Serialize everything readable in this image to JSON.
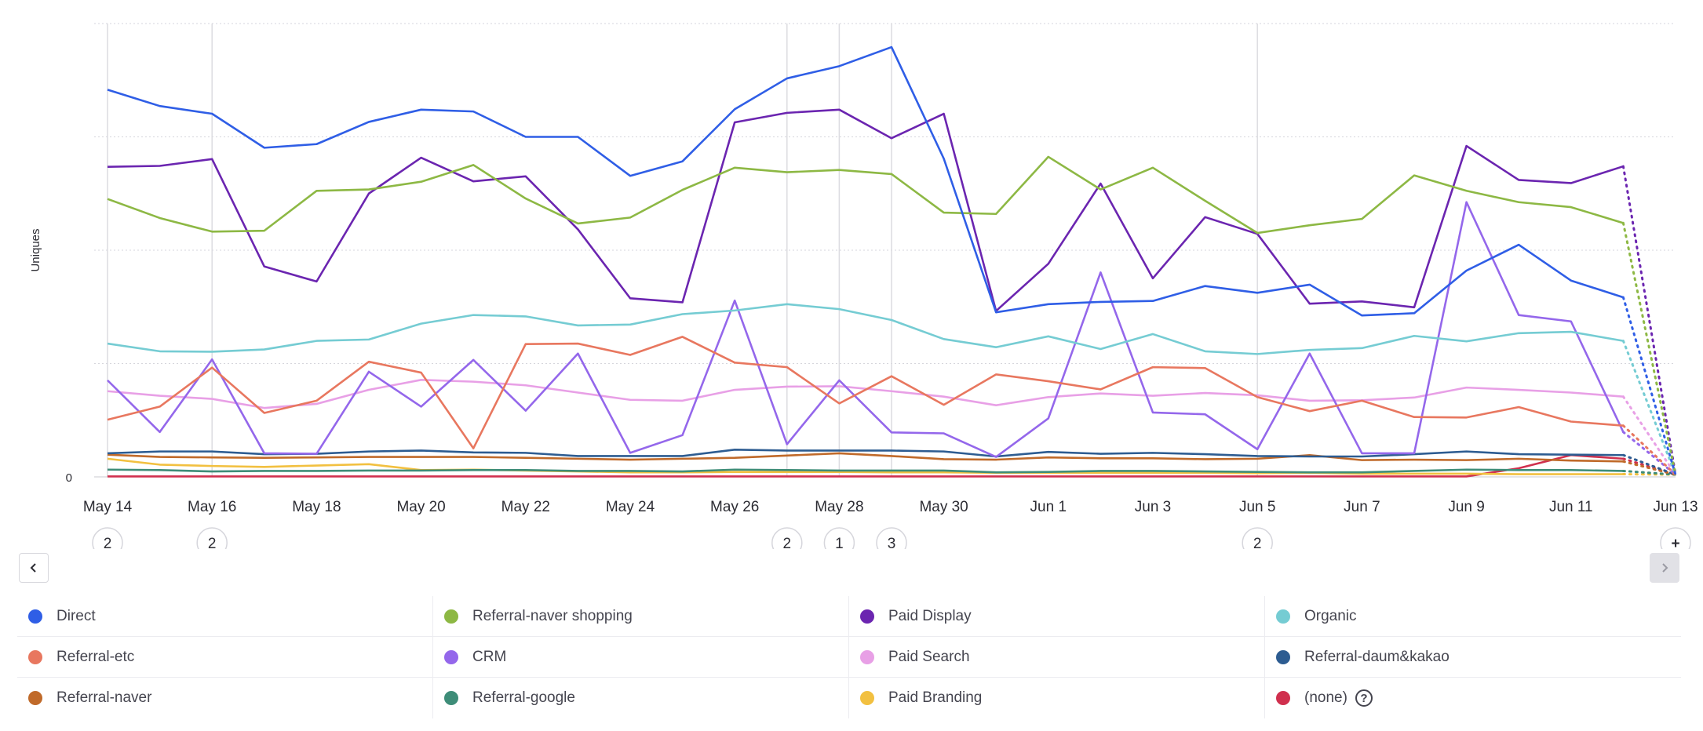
{
  "chart_data": {
    "type": "line",
    "ylabel": "Uniques",
    "yticks": [
      "0"
    ],
    "ylim": [
      0,
      100
    ],
    "grid": true,
    "legend_position": "bottom",
    "x": [
      "May 14",
      "May 15",
      "May 16",
      "May 17",
      "May 18",
      "May 19",
      "May 20",
      "May 21",
      "May 22",
      "May 23",
      "May 24",
      "May 25",
      "May 26",
      "May 27",
      "May 28",
      "May 29",
      "May 30",
      "May 31",
      "Jun 1",
      "Jun 2",
      "Jun 3",
      "Jun 4",
      "Jun 5",
      "Jun 6",
      "Jun 7",
      "Jun 8",
      "Jun 9",
      "Jun 10",
      "Jun 11",
      "Jun 12",
      "Jun 13"
    ],
    "xticks": [
      "May 14",
      "May 16",
      "May 18",
      "May 20",
      "May 22",
      "May 24",
      "May 26",
      "May 28",
      "May 30",
      "Jun 1",
      "Jun 3",
      "Jun 5",
      "Jun 7",
      "Jun 9",
      "Jun 11",
      "Jun 13"
    ],
    "incomplete_from_index": 29,
    "series": [
      {
        "name": "Direct",
        "color": "#2f5ee6",
        "values": [
          85.4,
          81.8,
          80.1,
          72.6,
          73.4,
          78.3,
          81.0,
          80.6,
          75.0,
          75.0,
          66.4,
          69.6,
          81.1,
          87.9,
          90.6,
          94.8,
          70.2,
          36.3,
          38.1,
          38.6,
          38.8,
          42.1,
          40.6,
          42.4,
          35.6,
          36.1,
          45.5,
          51.2,
          43.3,
          39.6,
          0.5
        ]
      },
      {
        "name": "Referral-naver shopping",
        "color": "#8db844",
        "values": [
          61.3,
          57.1,
          54.1,
          54.3,
          63.1,
          63.4,
          65.1,
          68.8,
          61.4,
          55.9,
          57.2,
          63.3,
          68.2,
          67.2,
          67.7,
          66.8,
          58.3,
          58.0,
          70.6,
          63.4,
          68.2,
          60.9,
          53.8,
          55.5,
          56.9,
          66.5,
          63.1,
          60.6,
          59.5,
          56.0,
          0.5
        ]
      },
      {
        "name": "Paid Display",
        "color": "#6b25b0",
        "values": [
          68.4,
          68.6,
          70.1,
          46.4,
          43.1,
          62.5,
          70.4,
          65.2,
          66.3,
          54.6,
          39.4,
          38.5,
          78.2,
          80.3,
          81.0,
          74.7,
          80.1,
          36.6,
          47.0,
          64.7,
          43.8,
          57.3,
          53.6,
          38.2,
          38.7,
          37.4,
          73.0,
          65.5,
          64.8,
          68.5,
          0.5
        ]
      },
      {
        "name": "Organic",
        "color": "#75ccd3",
        "values": [
          29.4,
          27.7,
          27.6,
          28.1,
          30.0,
          30.3,
          33.8,
          35.7,
          35.4,
          33.4,
          33.6,
          35.9,
          36.7,
          38.1,
          37.0,
          34.6,
          30.4,
          28.6,
          31.0,
          28.2,
          31.5,
          27.7,
          27.1,
          28.0,
          28.4,
          31.1,
          29.9,
          31.7,
          32.0,
          30.0,
          0.5
        ]
      },
      {
        "name": "Referral-etc",
        "color": "#e8775f",
        "values": [
          12.6,
          15.5,
          24.1,
          14.1,
          16.8,
          25.4,
          23.0,
          6.3,
          29.3,
          29.4,
          26.9,
          30.9,
          25.2,
          24.2,
          16.2,
          22.2,
          15.9,
          22.6,
          21.1,
          19.3,
          24.2,
          24.0,
          17.6,
          14.5,
          16.8,
          13.2,
          13.1,
          15.4,
          12.2,
          11.3,
          0.5
        ]
      },
      {
        "name": "CRM",
        "color": "#9467eb",
        "values": [
          21.3,
          9.9,
          25.9,
          5.2,
          5.1,
          23.2,
          15.5,
          25.8,
          14.6,
          27.2,
          5.3,
          9.2,
          38.9,
          7.2,
          21.3,
          9.8,
          9.6,
          4.4,
          12.9,
          45.1,
          14.2,
          13.8,
          6.1,
          27.2,
          5.2,
          5.2,
          60.6,
          35.7,
          34.3,
          9.9,
          0.5
        ]
      },
      {
        "name": "Paid Search",
        "color": "#e8a0e6",
        "values": [
          18.9,
          17.9,
          17.2,
          15.2,
          16.1,
          19.2,
          21.4,
          21.0,
          20.2,
          18.6,
          17.0,
          16.8,
          19.2,
          19.9,
          20.0,
          18.9,
          17.7,
          15.8,
          17.6,
          18.4,
          17.9,
          18.5,
          18.0,
          16.8,
          16.9,
          17.5,
          19.7,
          19.2,
          18.6,
          17.7,
          0.5
        ]
      },
      {
        "name": "Referral-daum&kakao",
        "color": "#2d5c91",
        "values": [
          5.2,
          5.6,
          5.6,
          5.0,
          5.1,
          5.6,
          5.8,
          5.4,
          5.3,
          4.6,
          4.6,
          4.6,
          6.0,
          5.8,
          5.8,
          5.8,
          5.6,
          4.5,
          5.5,
          5.1,
          5.3,
          5.0,
          4.6,
          4.5,
          4.5,
          5.0,
          5.6,
          5.0,
          4.9,
          4.8,
          0.5
        ]
      },
      {
        "name": "Referral-naver",
        "color": "#c06a2a",
        "values": [
          4.9,
          4.4,
          4.3,
          4.2,
          4.3,
          4.4,
          4.4,
          4.4,
          4.2,
          4.0,
          3.8,
          4.0,
          4.2,
          4.7,
          5.2,
          4.6,
          3.9,
          3.8,
          4.3,
          4.1,
          4.1,
          3.9,
          4.0,
          4.8,
          3.7,
          3.8,
          3.7,
          4.0,
          3.6,
          3.4,
          0.5
        ]
      },
      {
        "name": "Referral-google",
        "color": "#3e8d78",
        "values": [
          1.6,
          1.5,
          1.2,
          1.3,
          1.3,
          1.4,
          1.4,
          1.5,
          1.5,
          1.3,
          1.3,
          1.2,
          1.6,
          1.5,
          1.4,
          1.4,
          1.4,
          1.0,
          1.1,
          1.3,
          1.3,
          1.2,
          1.1,
          1.0,
          1.0,
          1.3,
          1.6,
          1.5,
          1.5,
          1.3,
          0.5
        ]
      },
      {
        "name": "Paid Branding",
        "color": "#f2c040",
        "values": [
          4.0,
          2.7,
          2.4,
          2.2,
          2.5,
          2.8,
          1.5,
          1.6,
          1.4,
          1.2,
          1.0,
          1.0,
          1.1,
          1.1,
          1.1,
          1.0,
          1.0,
          0.9,
          0.9,
          0.9,
          0.9,
          0.9,
          0.8,
          0.9,
          0.7,
          0.7,
          0.7,
          0.6,
          0.6,
          0.6,
          0.5
        ]
      },
      {
        "name": "(none)",
        "color": "#d0304e",
        "values": [
          0.1,
          0.1,
          0.1,
          0.1,
          0.1,
          0.1,
          0.1,
          0.1,
          0.1,
          0.1,
          0.1,
          0.1,
          0.1,
          0.1,
          0.1,
          0.1,
          0.1,
          0.1,
          0.1,
          0.1,
          0.1,
          0.1,
          0.1,
          0.1,
          0.1,
          0.1,
          0.1,
          1.9,
          4.8,
          4.0,
          0.5
        ]
      }
    ],
    "annotations": [
      {
        "x": "May 14",
        "count": "2"
      },
      {
        "x": "May 16",
        "count": "2"
      },
      {
        "x": "May 27",
        "count": "2"
      },
      {
        "x": "May 28",
        "count": "1"
      },
      {
        "x": "May 29",
        "count": "3"
      },
      {
        "x": "Jun 5",
        "count": "2"
      },
      {
        "x": "Jun 13",
        "count": "+"
      }
    ]
  },
  "controls": {
    "prev_icon": "chevron-left-icon",
    "next_icon": "chevron-right-icon",
    "help_icon": "question-circle-icon",
    "help_glyph": "?"
  }
}
